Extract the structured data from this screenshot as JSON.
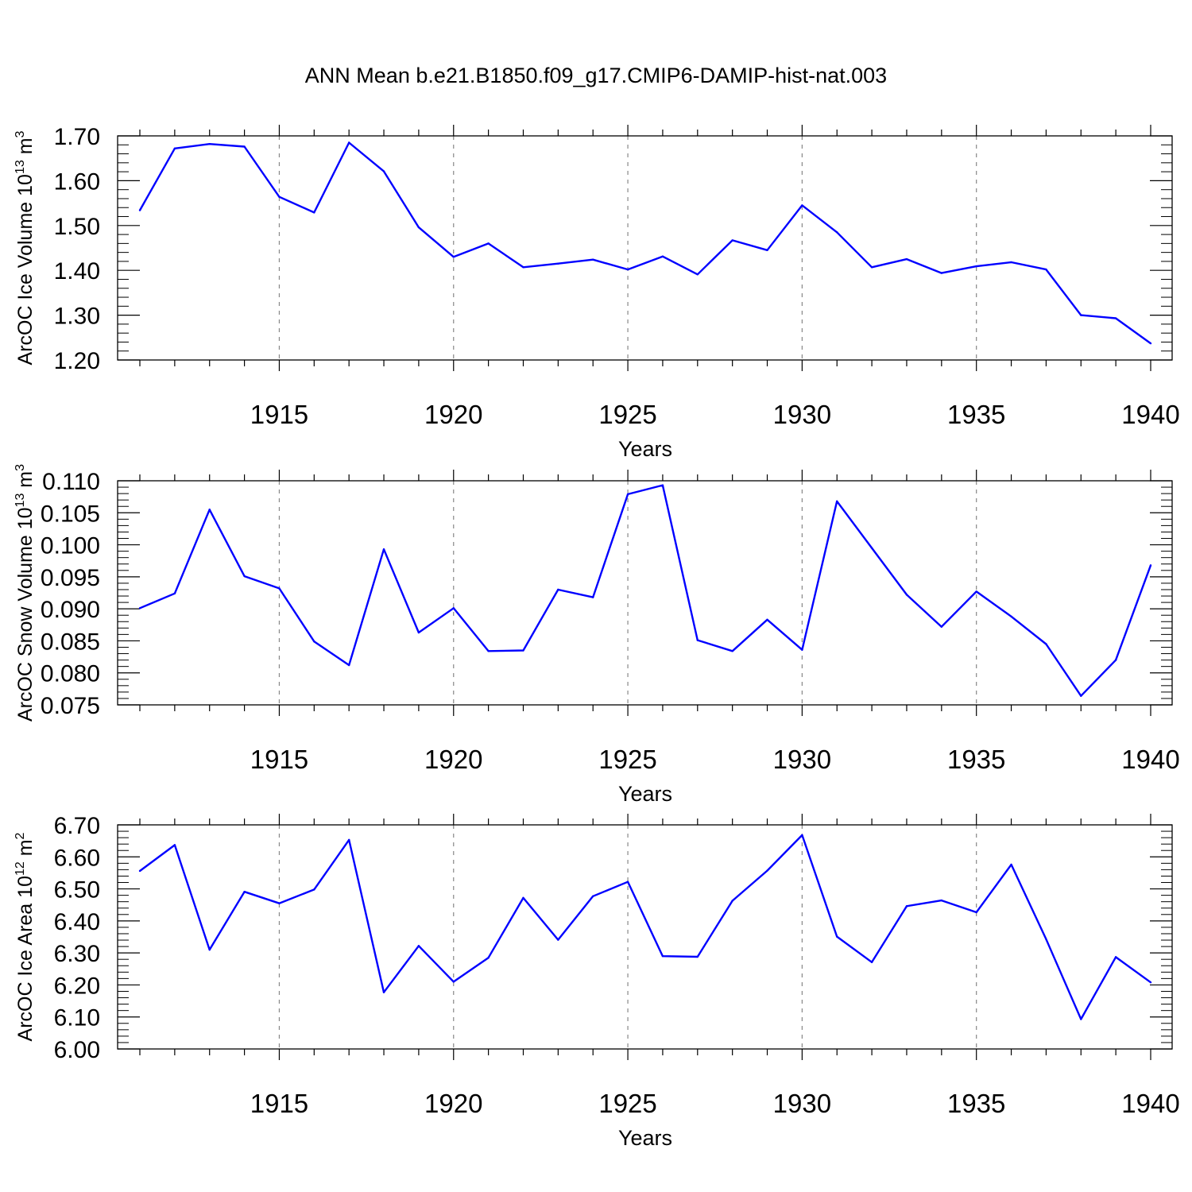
{
  "title": "ANN Mean b.e21.B1850.f09_g17.CMIP6-DAMIP-hist-nat.003",
  "colors": {
    "line": "#0000ff",
    "axis": "#000000",
    "grid": "#888888"
  },
  "chart_data": [
    {
      "type": "line",
      "ylabel": {
        "text": "ArcOC Ice Volume 10",
        "exp": "13",
        "unit": " m",
        "unit_exp": "3"
      },
      "xlabel": "Years",
      "xlim": [
        1911,
        1940
      ],
      "ylim": [
        1.2,
        1.7
      ],
      "yticks": [
        "1.20",
        "1.30",
        "1.40",
        "1.50",
        "1.60",
        "1.70"
      ],
      "xticks": [
        "1915",
        "1920",
        "1925",
        "1930",
        "1935",
        "1940"
      ],
      "grid_x": [
        1915,
        1920,
        1925,
        1930,
        1935
      ],
      "x": [
        1911,
        1912,
        1913,
        1914,
        1915,
        1916,
        1917,
        1918,
        1919,
        1920,
        1921,
        1922,
        1923,
        1924,
        1925,
        1926,
        1927,
        1928,
        1929,
        1930,
        1931,
        1932,
        1933,
        1934,
        1935,
        1936,
        1937,
        1938,
        1939,
        1940
      ],
      "values": [
        1.534,
        1.672,
        1.682,
        1.676,
        1.564,
        1.529,
        1.685,
        1.621,
        1.496,
        1.43,
        1.46,
        1.407,
        1.415,
        1.424,
        1.402,
        1.431,
        1.391,
        1.467,
        1.445,
        1.545,
        1.485,
        1.407,
        1.425,
        1.394,
        1.409,
        1.418,
        1.402,
        1.3,
        1.293,
        1.237
      ]
    },
    {
      "type": "line",
      "ylabel": {
        "text": "ArcOC Snow Volume 10",
        "exp": "13",
        "unit": " m",
        "unit_exp": "3"
      },
      "xlabel": "Years",
      "xlim": [
        1911,
        1940
      ],
      "ylim": [
        0.075,
        0.11
      ],
      "yticks": [
        "0.075",
        "0.080",
        "0.085",
        "0.090",
        "0.095",
        "0.100",
        "0.105",
        "0.110"
      ],
      "xticks": [
        "1915",
        "1920",
        "1925",
        "1930",
        "1935",
        "1940"
      ],
      "grid_x": [
        1915,
        1920,
        1925,
        1930,
        1935
      ],
      "x": [
        1911,
        1912,
        1913,
        1914,
        1915,
        1916,
        1917,
        1918,
        1919,
        1920,
        1921,
        1922,
        1923,
        1924,
        1925,
        1926,
        1927,
        1928,
        1929,
        1930,
        1931,
        1932,
        1933,
        1934,
        1935,
        1936,
        1937,
        1938,
        1939,
        1940
      ],
      "values": [
        0.0901,
        0.0924,
        0.1055,
        0.0951,
        0.0932,
        0.0849,
        0.0812,
        0.0993,
        0.0863,
        0.0901,
        0.0834,
        0.0835,
        0.093,
        0.0918,
        0.1079,
        0.1093,
        0.0851,
        0.0834,
        0.0883,
        0.0836,
        0.1068,
        0.0995,
        0.0922,
        0.0872,
        0.0927,
        0.0888,
        0.0845,
        0.0764,
        0.082,
        0.0968
      ]
    },
    {
      "type": "line",
      "ylabel": {
        "text": "ArcOC Ice Area 10",
        "exp": "12",
        "unit": " m",
        "unit_exp": "2"
      },
      "xlabel": "Years",
      "xlim": [
        1911,
        1940
      ],
      "ylim": [
        6.0,
        6.7
      ],
      "yticks": [
        "6.00",
        "6.10",
        "6.20",
        "6.30",
        "6.40",
        "6.50",
        "6.60",
        "6.70"
      ],
      "xticks": [
        "1915",
        "1920",
        "1925",
        "1930",
        "1935",
        "1940"
      ],
      "grid_x": [
        1915,
        1920,
        1925,
        1930,
        1935
      ],
      "x": [
        1911,
        1912,
        1913,
        1914,
        1915,
        1916,
        1917,
        1918,
        1919,
        1920,
        1921,
        1922,
        1923,
        1924,
        1925,
        1926,
        1927,
        1928,
        1929,
        1930,
        1931,
        1932,
        1933,
        1934,
        1935,
        1936,
        1937,
        1938,
        1939,
        1940
      ],
      "values": [
        6.556,
        6.637,
        6.31,
        6.491,
        6.455,
        6.498,
        6.653,
        6.177,
        6.322,
        6.21,
        6.285,
        6.472,
        6.341,
        6.477,
        6.522,
        6.29,
        6.288,
        6.463,
        6.557,
        6.668,
        6.351,
        6.271,
        6.446,
        6.464,
        6.427,
        6.576,
        6.343,
        6.093,
        6.287,
        6.208
      ]
    }
  ]
}
